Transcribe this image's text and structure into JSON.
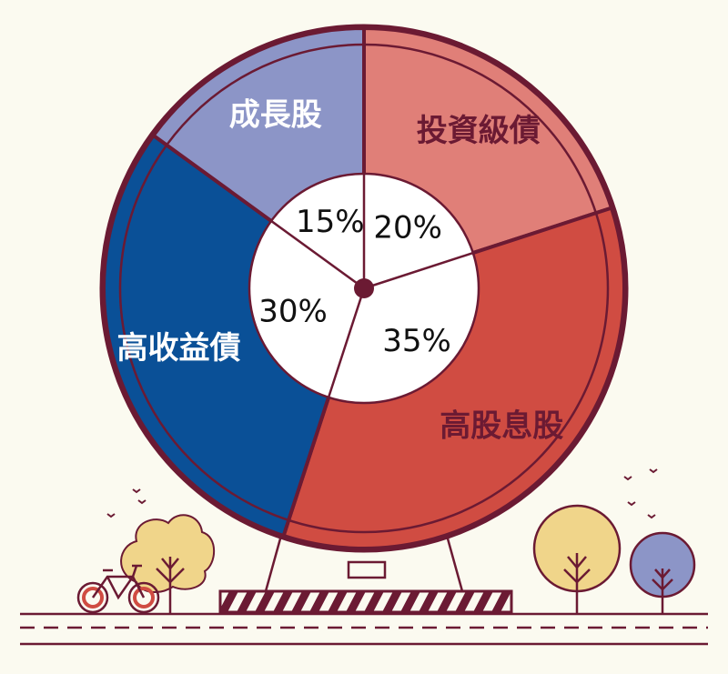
{
  "chart_data": {
    "type": "pie",
    "title": "",
    "categories": [
      "投資級債",
      "高股息股",
      "高收益債",
      "成長股"
    ],
    "values": [
      20,
      35,
      30,
      15
    ],
    "value_labels": [
      "20%",
      "35%",
      "30%",
      "15%"
    ],
    "colors": [
      "#e07f78",
      "#d04c42",
      "#0a5097",
      "#8c95c7"
    ],
    "label_colors": [
      "#6b1a33",
      "#6b1a33",
      "#ffffff",
      "#ffffff"
    ],
    "start_angle_deg": 0,
    "direction": "clockwise",
    "outline_color": "#6b1a33",
    "inner_hole": true
  },
  "scene": {
    "background": "#fbfaf0",
    "ink": "#6b1a33",
    "tree_colors": [
      "#f0d58a",
      "#f0d58a",
      "#8c95c7"
    ]
  }
}
